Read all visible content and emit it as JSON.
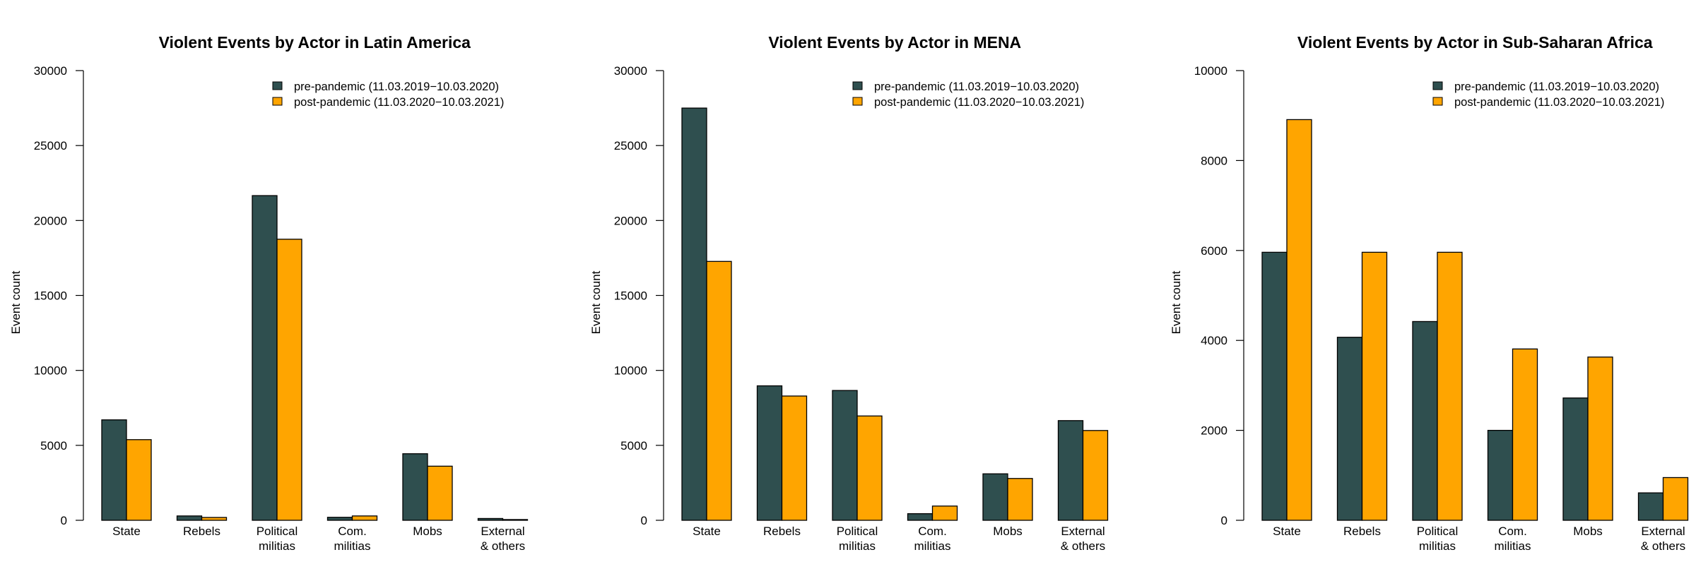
{
  "chart_data": [
    {
      "type": "bar",
      "title": "Violent Events by Actor in Latin America",
      "xlabel": "",
      "ylabel": "Event count",
      "ylim": [
        0,
        30000
      ],
      "yticks": [
        0,
        5000,
        10000,
        15000,
        20000,
        25000,
        30000
      ],
      "categories": [
        [
          "State"
        ],
        [
          "Rebels"
        ],
        [
          "Political",
          "militias"
        ],
        [
          "Com.",
          "militias"
        ],
        [
          "Mobs"
        ],
        [
          "External",
          "& others"
        ]
      ],
      "legend_position": "top-right",
      "series": [
        {
          "name": "pre-pandemic (11.03.2019−10.03.2020)",
          "color": "#2F4F4F",
          "values": [
            6700,
            290,
            21660,
            200,
            4440,
            120
          ]
        },
        {
          "name": "post-pandemic (11.03.2020−10.03.2021)",
          "color": "#FFA500",
          "values": [
            5380,
            190,
            18750,
            290,
            3610,
            50
          ]
        }
      ]
    },
    {
      "type": "bar",
      "title": "Violent Events by Actor in MENA",
      "xlabel": "",
      "ylabel": "Event count",
      "ylim": [
        0,
        30000
      ],
      "yticks": [
        0,
        5000,
        10000,
        15000,
        20000,
        25000,
        30000
      ],
      "categories": [
        [
          "State"
        ],
        [
          "Rebels"
        ],
        [
          "Political",
          "militias"
        ],
        [
          "Com.",
          "militias"
        ],
        [
          "Mobs"
        ],
        [
          "External",
          "& others"
        ]
      ],
      "legend_position": "top-right",
      "series": [
        {
          "name": "pre-pandemic (11.03.2019−10.03.2020)",
          "color": "#2F4F4F",
          "values": [
            27500,
            8970,
            8660,
            440,
            3100,
            6650
          ]
        },
        {
          "name": "post-pandemic (11.03.2020−10.03.2021)",
          "color": "#FFA500",
          "values": [
            17270,
            8290,
            6960,
            950,
            2790,
            5990
          ]
        }
      ]
    },
    {
      "type": "bar",
      "title": "Violent Events by Actor in Sub-Saharan Africa",
      "xlabel": "",
      "ylabel": "Event count",
      "ylim": [
        0,
        10000
      ],
      "yticks": [
        0,
        2000,
        4000,
        6000,
        8000,
        10000
      ],
      "categories": [
        [
          "State"
        ],
        [
          "Rebels"
        ],
        [
          "Political",
          "militias"
        ],
        [
          "Com.",
          "militias"
        ],
        [
          "Mobs"
        ],
        [
          "External",
          "& others"
        ]
      ],
      "legend_position": "top-right",
      "series": [
        {
          "name": "pre-pandemic (11.03.2019−10.03.2020)",
          "color": "#2F4F4F",
          "values": [
            5960,
            4070,
            4420,
            2000,
            2720,
            610
          ]
        },
        {
          "name": "post-pandemic (11.03.2020−10.03.2021)",
          "color": "#FFA500",
          "values": [
            8910,
            5960,
            5960,
            3810,
            3630,
            950
          ]
        }
      ]
    }
  ]
}
